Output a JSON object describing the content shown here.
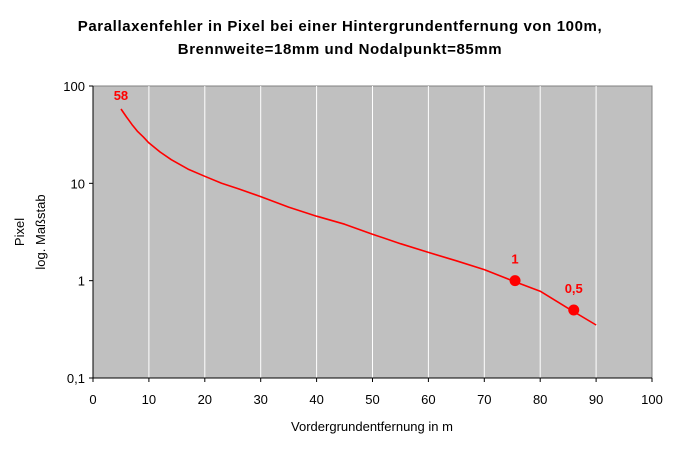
{
  "chart_data": {
    "type": "line",
    "title": "Parallaxenfehler in Pixel bei einer Hintergrundentfernung von 100m,",
    "subtitle": "Brennweite=18mm und Nodalpunkt=85mm",
    "xlabel": "Vordergrundentfernung in m",
    "ylabel": "Pixel",
    "ylabel_sub": "log. Maßstab",
    "xlim": [
      0,
      100
    ],
    "ylim": [
      0.1,
      100
    ],
    "y_scale": "log",
    "x_ticks": [
      "0",
      "10",
      "20",
      "30",
      "40",
      "50",
      "60",
      "70",
      "80",
      "90",
      "100"
    ],
    "y_ticks": [
      "0,1",
      "1",
      "10",
      "100"
    ],
    "grid": "vertical",
    "series": [
      {
        "color": "#ff0000",
        "x": [
          5,
          6,
          7,
          8,
          9,
          10,
          12,
          14,
          17,
          20,
          23,
          26,
          30,
          35,
          40,
          45,
          50,
          55,
          60,
          65,
          70,
          75,
          80,
          85,
          90
        ],
        "y": [
          58,
          48,
          40,
          34,
          30,
          26,
          21,
          17.5,
          14,
          11.8,
          10,
          8.8,
          7.3,
          5.7,
          4.6,
          3.8,
          3.0,
          2.4,
          1.95,
          1.6,
          1.3,
          1.0,
          0.78,
          0.52,
          0.35
        ]
      }
    ],
    "markers": [
      {
        "x": 75.5,
        "y": 1,
        "label": "1"
      },
      {
        "x": 86,
        "y": 0.5,
        "label": "0,5"
      }
    ],
    "annotations": [
      {
        "x": 5,
        "y": 58,
        "text": "58"
      }
    ]
  },
  "colors": {
    "plot_background": "#c0c0c0",
    "grid": "#ffffff",
    "series": "#ff0000"
  }
}
